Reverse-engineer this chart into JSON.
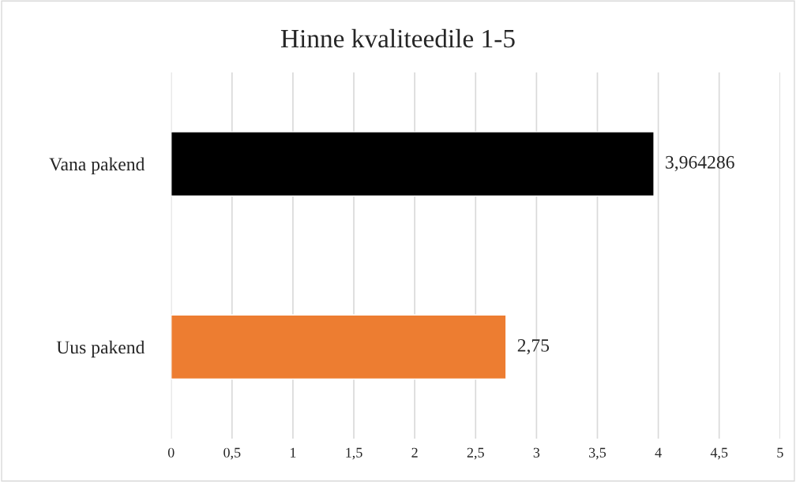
{
  "chart_data": {
    "type": "bar",
    "orientation": "horizontal",
    "title": "Hinne kvaliteedile 1-5",
    "categories": [
      "Vana pakend",
      "Uus pakend"
    ],
    "values": [
      3.964286,
      2.75
    ],
    "colors": [
      "#000000",
      "#ed7d31"
    ],
    "value_labels": [
      "3,964286",
      "2,75"
    ],
    "xlim": [
      0,
      5
    ],
    "xticks": [
      0,
      {
        "value": 0.5,
        "label": "0,5"
      },
      1,
      {
        "value": 1.5,
        "label": "1,5"
      },
      2,
      {
        "value": 2.5,
        "label": "2,5"
      },
      3,
      {
        "value": 3.5,
        "label": "3,5"
      },
      4,
      {
        "value": 4.5,
        "label": "4,5"
      },
      5
    ],
    "grid": "x"
  }
}
